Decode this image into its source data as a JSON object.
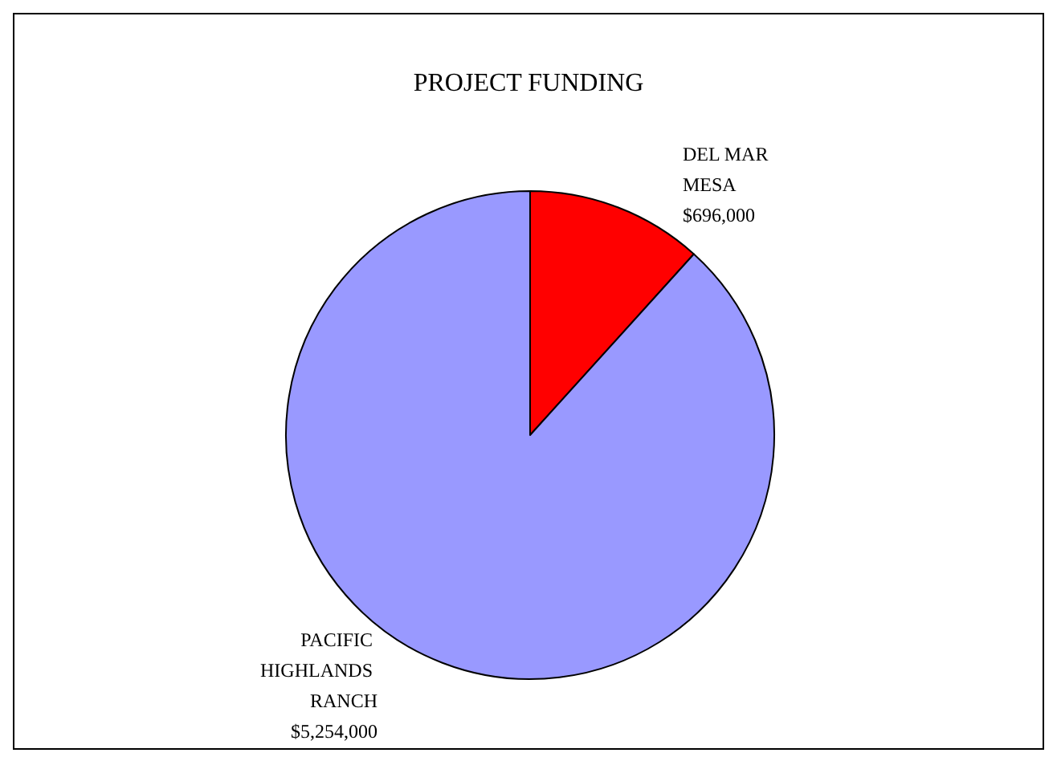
{
  "chart_data": {
    "type": "pie",
    "title": "PROJECT FUNDING",
    "categories": [
      "DEL MAR MESA",
      "PACIFIC HIGHLANDS RANCH"
    ],
    "values": [
      696000,
      5254000
    ],
    "value_labels": [
      "$696,000",
      "$5,254,000"
    ],
    "colors": [
      "#ff0000",
      "#9999ff"
    ],
    "legend": false
  }
}
